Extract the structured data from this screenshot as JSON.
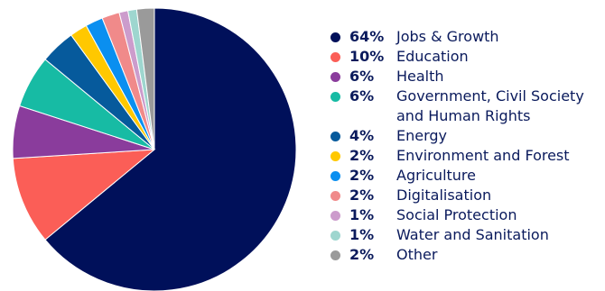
{
  "chart_data": {
    "type": "pie",
    "legend_position": "right",
    "slices": [
      {
        "label": "Jobs & Growth",
        "value": 64,
        "pct_label": "64%",
        "color": "#00105a"
      },
      {
        "label": "Education",
        "value": 10,
        "pct_label": "10%",
        "color": "#fb5e57"
      },
      {
        "label": "Health",
        "value": 6,
        "pct_label": "6%",
        "color": "#8a3c9c"
      },
      {
        "label": "Government, Civil Society\nand Human Rights",
        "value": 6,
        "pct_label": "6%",
        "color": "#17bba4"
      },
      {
        "label": "Energy",
        "value": 4,
        "pct_label": "4%",
        "color": "#065a9c"
      },
      {
        "label": "Environment and Forest",
        "value": 2,
        "pct_label": "2%",
        "color": "#ffc800"
      },
      {
        "label": "Agriculture",
        "value": 2,
        "pct_label": "2%",
        "color": "#0a8ff0"
      },
      {
        "label": "Digitalisation",
        "value": 2,
        "pct_label": "2%",
        "color": "#f08a8a"
      },
      {
        "label": "Social Protection",
        "value": 1,
        "pct_label": "1%",
        "color": "#cc9ccc"
      },
      {
        "label": "Water and Sanitation",
        "value": 1,
        "pct_label": "1%",
        "color": "#9ed6cf"
      },
      {
        "label": "Other",
        "value": 2,
        "pct_label": "2%",
        "color": "#9a9a9a"
      }
    ]
  }
}
